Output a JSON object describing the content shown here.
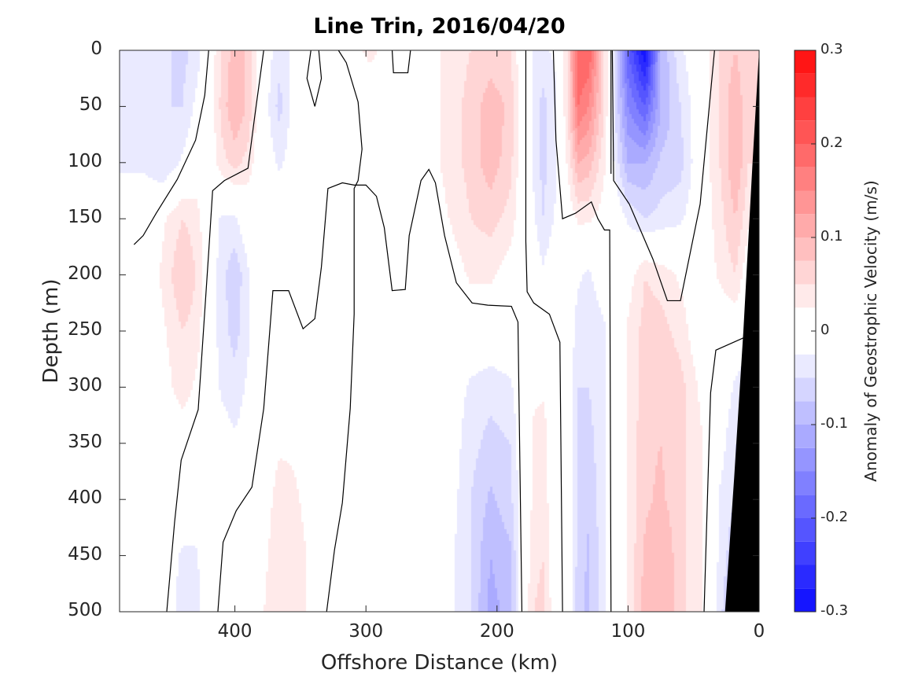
{
  "chart_data": {
    "type": "heatmap",
    "subtype": "filled-contour",
    "title": "Line Trin, 2016/04/20",
    "xlabel": "Offshore Distance (km)",
    "ylabel": "Depth (m)",
    "colorbar_label": "Anomaly of Geostrophic Velocity (m/s)",
    "xlim": [
      0,
      488
    ],
    "x_reversed": true,
    "ylim": [
      0,
      500
    ],
    "y_reversed": true,
    "xticks": [
      "400",
      "300",
      "200",
      "100",
      "0"
    ],
    "xtick_values": [
      400,
      300,
      200,
      100,
      0
    ],
    "yticks": [
      "0",
      "50",
      "100",
      "150",
      "200",
      "250",
      "300",
      "350",
      "400",
      "450",
      "500"
    ],
    "ytick_values": [
      0,
      50,
      100,
      150,
      200,
      250,
      300,
      350,
      400,
      450,
      500
    ],
    "clim": [
      -0.3,
      0.3
    ],
    "contour_step": 0.025,
    "colorbar_ticks": [
      "0.3",
      "0.2",
      "0.1",
      "0",
      "-0.1",
      "-0.2",
      "-0.3"
    ],
    "colorbar_tick_values": [
      0.3,
      0.2,
      0.1,
      0,
      -0.1,
      -0.2,
      -0.3
    ],
    "colors": {
      "positive": "#ff0000",
      "negative": "#0000ff",
      "zero": "#ffffff",
      "contour": "#000000",
      "bottom": "#000000"
    },
    "depths": [
      0,
      50,
      100,
      150,
      200,
      250,
      300,
      350,
      400,
      450,
      500
    ],
    "distances": [
      0,
      8,
      18,
      30,
      45,
      60,
      75,
      87,
      100,
      110,
      118,
      130,
      138,
      146,
      155,
      165,
      172,
      180,
      190,
      205,
      220,
      240,
      260,
      297,
      330,
      355,
      366,
      380,
      390,
      400,
      410,
      420,
      430,
      440,
      455,
      470,
      488
    ],
    "velocity_columns": [
      [
        0.05,
        0.05,
        0.05,
        0.03,
        0,
        0,
        -0.05,
        -0.05,
        -0.075,
        -0.1,
        -0.1
      ],
      [
        0.05,
        0.05,
        0.05,
        0.03,
        0,
        0,
        -0.05,
        -0.05,
        -0.075,
        -0.1,
        -0.1
      ],
      [
        0.075,
        0.1,
        0.1,
        0.075,
        0.05,
        0,
        -0.03,
        -0.05,
        -0.05,
        -0.075,
        -0.1
      ],
      [
        0.05,
        0.05,
        0.05,
        0.04,
        0.03,
        0,
        0,
        -0.01,
        -0.03,
        -0.03,
        -0.04
      ],
      [
        0,
        0,
        0,
        0,
        0,
        0,
        0.02,
        0.03,
        0.03,
        0.03,
        0.03
      ],
      [
        -0.03,
        -0.05,
        -0.06,
        -0.03,
        0.02,
        0.04,
        0.06,
        0.06,
        0.06,
        0.06,
        0.06
      ],
      [
        -0.1,
        -0.1,
        -0.07,
        -0.04,
        0.04,
        0.06,
        0.07,
        0.075,
        0.08,
        0.1,
        0.1
      ],
      [
        -0.3,
        -0.2,
        -0.1,
        -0.05,
        0.05,
        0.06,
        0.06,
        0.07,
        0.07,
        0.08,
        0.09
      ],
      [
        -0.2,
        -0.15,
        -0.1,
        -0.03,
        0.01,
        0.03,
        0.03,
        0.03,
        0.03,
        0.03,
        0.03
      ],
      [
        -0.05,
        -0.05,
        -0.03,
        0,
        0,
        0,
        0,
        0,
        0,
        0,
        0
      ],
      [
        0.05,
        0.05,
        0.03,
        0.01,
        0,
        -0.03,
        -0.03,
        -0.03,
        -0.03,
        -0.03,
        -0.03
      ],
      [
        0.2,
        0.15,
        0.09,
        0.03,
        -0.03,
        -0.05,
        -0.05,
        -0.06,
        -0.07,
        -0.08,
        -0.08
      ],
      [
        0.2,
        0.175,
        0.1,
        0.03,
        -0.02,
        -0.04,
        -0.05,
        -0.05,
        -0.06,
        -0.06,
        -0.07
      ],
      [
        0.05,
        0.05,
        0.03,
        0,
        0,
        0,
        0,
        0,
        0,
        0,
        0
      ],
      [
        -0.02,
        -0.03,
        -0.03,
        -0.02,
        0,
        0,
        0,
        0,
        0,
        0,
        0
      ],
      [
        -0.03,
        -0.06,
        -0.06,
        -0.05,
        -0.02,
        0,
        0.02,
        0.04,
        0.04,
        0.05,
        0.06
      ],
      [
        -0.03,
        -0.03,
        -0.03,
        -0.02,
        0,
        0,
        0.02,
        0.03,
        0.03,
        0.04,
        0.05
      ],
      [
        0,
        0,
        0,
        0,
        0,
        0,
        0,
        0,
        0,
        0,
        0
      ],
      [
        0.05,
        0.07,
        0.06,
        0.04,
        0.01,
        0,
        -0.03,
        -0.05,
        -0.06,
        -0.08,
        -0.09
      ],
      [
        0.06,
        0.09,
        0.09,
        0.06,
        0.03,
        0,
        -0.04,
        -0.06,
        -0.08,
        -0.1,
        -0.11
      ],
      [
        0.05,
        0.06,
        0.06,
        0.05,
        0.03,
        0,
        -0.03,
        -0.04,
        -0.05,
        -0.05,
        -0.05
      ],
      [
        0.03,
        0.03,
        0.03,
        0.02,
        0,
        0,
        0,
        0,
        0,
        -0.01,
        -0.01
      ],
      [
        0,
        0,
        0,
        0,
        0,
        0,
        0,
        0,
        0,
        0,
        0
      ],
      [
        0.03,
        0.01,
        0,
        0,
        0,
        0,
        0,
        0,
        0,
        0,
        0
      ],
      [
        0,
        0,
        0,
        0,
        0,
        0,
        0,
        0,
        0,
        0,
        0
      ],
      [
        -0.02,
        -0.01,
        -0.01,
        0,
        0,
        0,
        0,
        0.02,
        0.03,
        0.04,
        0.04
      ],
      [
        -0.04,
        -0.06,
        -0.03,
        0,
        0,
        0,
        0,
        0.02,
        0.04,
        0.05,
        0.05
      ],
      [
        0,
        0,
        0,
        0,
        0,
        0,
        0,
        0,
        0,
        0.01,
        0.02
      ],
      [
        0.07,
        0.07,
        0.04,
        0,
        -0.03,
        -0.03,
        -0.02,
        -0.01,
        0,
        0,
        0
      ],
      [
        0.09,
        0.1,
        0.06,
        -0.03,
        -0.07,
        -0.06,
        -0.04,
        -0.02,
        0,
        0,
        0
      ],
      [
        0.05,
        0.06,
        0.04,
        -0.03,
        -0.04,
        -0.04,
        -0.03,
        -0.01,
        0,
        0,
        0
      ],
      [
        0,
        0,
        0,
        0,
        0,
        0,
        0,
        0,
        0,
        0,
        0
      ],
      [
        -0.04,
        -0.02,
        0,
        0.04,
        0.05,
        0.04,
        0.02,
        0,
        0,
        -0.03,
        -0.04
      ],
      [
        -0.06,
        -0.05,
        -0.02,
        0.05,
        0.075,
        0.05,
        0.04,
        0,
        0,
        -0.03,
        -0.04
      ],
      [
        -0.04,
        -0.05,
        -0.05,
        0.02,
        0.03,
        0.02,
        0.01,
        0,
        0,
        0,
        0
      ],
      [
        -0.03,
        -0.03,
        -0.03,
        0,
        0,
        0,
        0,
        0,
        0,
        0,
        0
      ],
      [
        -0.03,
        -0.03,
        -0.03,
        0,
        0,
        0,
        0,
        0,
        0,
        0,
        0
      ]
    ],
    "zero_contours": [
      [
        [
          477,
          173
        ],
        [
          470,
          165
        ],
        [
          460,
          145
        ],
        [
          444,
          115
        ],
        [
          430,
          80
        ],
        [
          423,
          40
        ],
        [
          420,
          0
        ]
      ],
      [
        [
          452,
          500
        ],
        [
          446,
          420
        ],
        [
          441,
          365
        ],
        [
          428,
          320
        ],
        [
          424,
          250
        ],
        [
          420,
          180
        ],
        [
          417,
          125
        ],
        [
          408,
          116
        ],
        [
          390,
          105
        ],
        [
          385,
          60
        ],
        [
          378,
          0
        ]
      ],
      [
        [
          413,
          500
        ],
        [
          409,
          438
        ],
        [
          399,
          410
        ],
        [
          387,
          389
        ],
        [
          378,
          319
        ],
        [
          371,
          214
        ],
        [
          359,
          214
        ],
        [
          348,
          248
        ],
        [
          339,
          239
        ],
        [
          334,
          193
        ],
        [
          329,
          123
        ],
        [
          318,
          118
        ],
        [
          309,
          120
        ],
        [
          300,
          120
        ],
        [
          292,
          130
        ],
        [
          286,
          158
        ],
        [
          280,
          214
        ],
        [
          270,
          213
        ],
        [
          267,
          165
        ],
        [
          258,
          116
        ],
        [
          252,
          106
        ],
        [
          247,
          118
        ],
        [
          240,
          165
        ],
        [
          231,
          207
        ],
        [
          219,
          225
        ],
        [
          207,
          227
        ],
        [
          189,
          228
        ],
        [
          184,
          242
        ],
        [
          181,
          500
        ]
      ],
      [
        [
          321,
          0
        ],
        [
          315,
          11
        ],
        [
          306,
          46
        ],
        [
          303,
          88
        ],
        [
          306,
          116
        ],
        [
          309,
          123
        ],
        [
          309,
          235
        ],
        [
          312,
          319
        ],
        [
          318,
          403
        ],
        [
          324,
          445
        ],
        [
          330,
          500
        ]
      ],
      [
        [
          342,
          0
        ],
        [
          345,
          25
        ],
        [
          339,
          50
        ],
        [
          334,
          25
        ],
        [
          336,
          0
        ]
      ],
      [
        [
          280,
          0
        ],
        [
          279,
          20
        ],
        [
          268,
          20
        ],
        [
          266,
          0
        ]
      ],
      [
        [
          178,
          0
        ],
        [
          178,
          170
        ],
        [
          177,
          215
        ],
        [
          172,
          225
        ],
        [
          160,
          235
        ],
        [
          152,
          260
        ],
        [
          150,
          500
        ]
      ],
      [
        [
          157,
          0
        ],
        [
          155,
          80
        ],
        [
          150,
          150
        ],
        [
          140,
          145
        ],
        [
          128,
          135
        ],
        [
          123,
          150
        ],
        [
          118,
          160
        ],
        [
          114,
          160
        ],
        [
          113,
          500
        ]
      ],
      [
        [
          113,
          0
        ],
        [
          113,
          110
        ]
      ],
      [
        [
          112,
          0
        ],
        [
          111,
          116
        ],
        [
          99,
          137
        ],
        [
          81,
          186
        ],
        [
          70,
          223
        ],
        [
          60,
          223
        ],
        [
          45,
          137
        ],
        [
          34,
          0
        ]
      ],
      [
        [
          6,
          253
        ],
        [
          33,
          267
        ],
        [
          37,
          305
        ],
        [
          42,
          500
        ]
      ]
    ],
    "bottom_profile": [
      [
        0,
        0
      ],
      [
        5,
        100
      ],
      [
        12,
        250
      ],
      [
        19,
        380
      ],
      [
        26,
        500
      ]
    ]
  }
}
